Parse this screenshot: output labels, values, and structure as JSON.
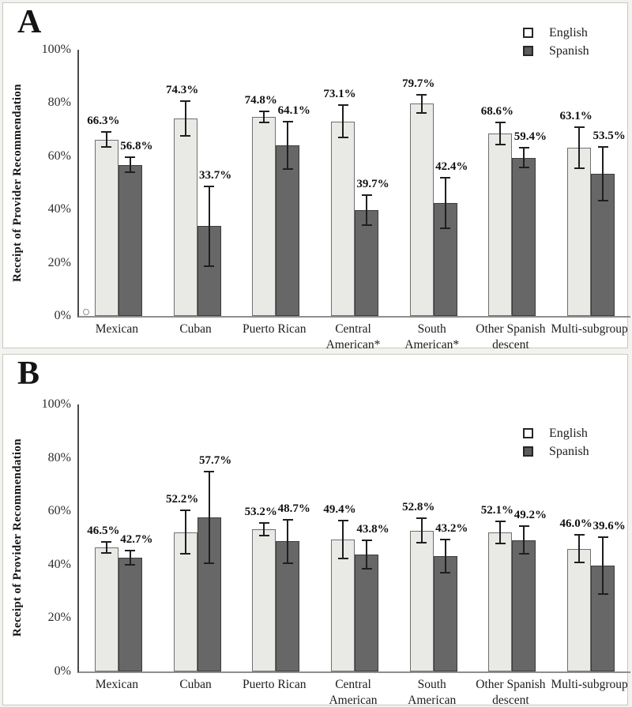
{
  "page": {
    "background": "#f2f2ef",
    "panel_background": "#ffffff",
    "panel_border": "#c9c9c4",
    "axis_color": "#4a4a4a",
    "baseline_color": "#8e8e8e",
    "error_bar_color": "#1f1f1f"
  },
  "chart_data": [
    {
      "type": "bar",
      "panel_label": "A",
      "ylabel": "Receipt of Provider Recommendation",
      "xlabel": "",
      "ylim": [
        0,
        100
      ],
      "ytick_step": 20,
      "ytick_suffix": "%",
      "grid": false,
      "legend_position": "top-right",
      "categories": [
        "Mexican",
        "Cuban",
        "Puerto Rican",
        "Central American*",
        "South American*",
        "Other Spanish descent",
        "Multi-subgroup"
      ],
      "category_lines": [
        [
          "Mexican"
        ],
        [
          "Cuban"
        ],
        [
          "Puerto Rican"
        ],
        [
          "Central",
          "American*"
        ],
        [
          "South",
          "American*"
        ],
        [
          "Other Spanish",
          "descent"
        ],
        [
          "Multi-subgroup"
        ]
      ],
      "series": [
        {
          "name": "English",
          "fill": "#e9e9e6",
          "border": "#6f6f6f",
          "values": [
            66.3,
            74.3,
            74.8,
            73.1,
            79.7,
            68.6,
            63.1
          ],
          "errors": [
            3.0,
            6.8,
            2.4,
            6.3,
            3.7,
            4.4,
            8.0
          ],
          "value_labels": [
            "66.3%",
            "74.3%",
            "74.8%",
            "73.1%",
            "79.7%",
            "68.6%",
            "63.1%"
          ]
        },
        {
          "name": "Spanish",
          "fill": "#676767",
          "border": "#3c3c3c",
          "values": [
            56.8,
            33.7,
            64.1,
            39.7,
            42.4,
            59.4,
            53.5
          ],
          "errors": [
            3.0,
            15.2,
            9.2,
            6.0,
            9.8,
            4.0,
            10.4
          ],
          "value_labels": [
            "56.8%",
            "33.7%",
            "64.1%",
            "39.7%",
            "42.4%",
            "59.4%",
            "53.5%"
          ]
        }
      ]
    },
    {
      "type": "bar",
      "panel_label": "B",
      "ylabel": "Receipt of Provider Recommendation",
      "xlabel": "",
      "ylim": [
        0,
        100
      ],
      "ytick_step": 20,
      "ytick_suffix": "%",
      "grid": false,
      "legend_position": "top-right",
      "categories": [
        "Mexican",
        "Cuban",
        "Puerto Rican",
        "Central American",
        "South American",
        "Other Spanish descent",
        "Multi-subgroup"
      ],
      "category_lines": [
        [
          "Mexican"
        ],
        [
          "Cuban"
        ],
        [
          "Puerto Rican"
        ],
        [
          "Central",
          "American"
        ],
        [
          "South",
          "American"
        ],
        [
          "Other Spanish",
          "descent"
        ],
        [
          "Multi-subgroup"
        ]
      ],
      "series": [
        {
          "name": "English",
          "fill": "#e9e9e6",
          "border": "#6f6f6f",
          "values": [
            46.5,
            52.2,
            53.2,
            49.4,
            52.8,
            52.1,
            46.0
          ],
          "errors": [
            2.3,
            8.5,
            2.7,
            7.5,
            5.0,
            4.5,
            5.5
          ],
          "value_labels": [
            "46.5%",
            "52.2%",
            "53.2%",
            "49.4%",
            "52.8%",
            "52.1%",
            "46.0%"
          ]
        },
        {
          "name": "Spanish",
          "fill": "#676767",
          "border": "#3c3c3c",
          "values": [
            42.7,
            57.7,
            48.7,
            43.8,
            43.2,
            49.2,
            39.6
          ],
          "errors": [
            3.0,
            17.5,
            8.5,
            5.5,
            6.5,
            5.5,
            11.0
          ],
          "value_labels": [
            "42.7%",
            "57.7%",
            "48.7%",
            "43.8%",
            "43.2%",
            "49.2%",
            "39.6%"
          ]
        }
      ]
    }
  ]
}
